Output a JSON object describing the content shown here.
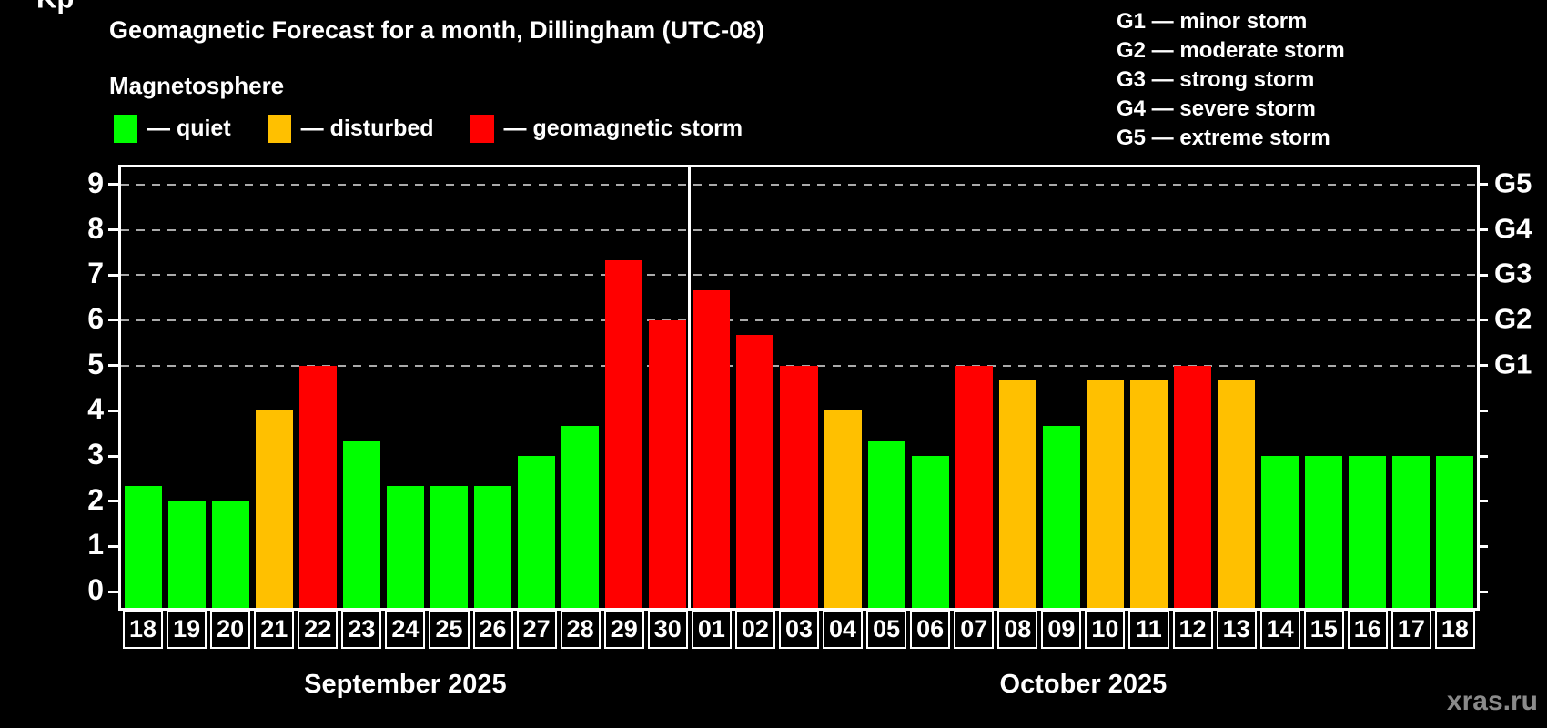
{
  "title": "Geomagnetic Forecast for a month, Dillingham (UTC-08)",
  "subtitle": "Magnetosphere",
  "legend": {
    "items": [
      {
        "level": "quiet",
        "label": "— quiet",
        "color": "#00ff00"
      },
      {
        "level": "disturbed",
        "label": "— disturbed",
        "color": "#ffc000"
      },
      {
        "level": "storm",
        "label": "— geomagnetic storm",
        "color": "#ff0000"
      }
    ]
  },
  "g_legend": {
    "lines": [
      "G1 — minor storm",
      "G2 — moderate storm",
      "G3 — strong storm",
      "G4 — severe storm",
      "G5 — extreme storm"
    ]
  },
  "watermark": "xras.ru",
  "chart_data": {
    "type": "bar",
    "ylabel": "Kp",
    "ylim": [
      -0.36,
      9.38
    ],
    "y_ticks": [
      0,
      1,
      2,
      3,
      4,
      5,
      6,
      7,
      8,
      9
    ],
    "gridlines_kp": [
      5,
      6,
      7,
      8,
      9
    ],
    "grid_style": "dashed",
    "right_axis_labels": [
      {
        "kp": 5,
        "label": "G1"
      },
      {
        "kp": 6,
        "label": "G2"
      },
      {
        "kp": 7,
        "label": "G3"
      },
      {
        "kp": 8,
        "label": "G4"
      },
      {
        "kp": 9,
        "label": "G5"
      }
    ],
    "groups": [
      {
        "label": "September 2025",
        "bars": [
          {
            "day": "18",
            "kp": 2.33,
            "level": "quiet"
          },
          {
            "day": "19",
            "kp": 2.0,
            "level": "quiet"
          },
          {
            "day": "20",
            "kp": 2.0,
            "level": "quiet"
          },
          {
            "day": "21",
            "kp": 4.0,
            "level": "disturbed"
          },
          {
            "day": "22",
            "kp": 5.0,
            "level": "storm"
          },
          {
            "day": "23",
            "kp": 3.33,
            "level": "quiet"
          },
          {
            "day": "24",
            "kp": 2.33,
            "level": "quiet"
          },
          {
            "day": "25",
            "kp": 2.33,
            "level": "quiet"
          },
          {
            "day": "26",
            "kp": 2.33,
            "level": "quiet"
          },
          {
            "day": "27",
            "kp": 3.0,
            "level": "quiet"
          },
          {
            "day": "28",
            "kp": 3.67,
            "level": "quiet"
          },
          {
            "day": "29",
            "kp": 7.33,
            "level": "storm"
          },
          {
            "day": "30",
            "kp": 6.0,
            "level": "storm"
          }
        ]
      },
      {
        "label": "October 2025",
        "bars": [
          {
            "day": "01",
            "kp": 6.67,
            "level": "storm"
          },
          {
            "day": "02",
            "kp": 5.67,
            "level": "storm"
          },
          {
            "day": "03",
            "kp": 5.0,
            "level": "storm"
          },
          {
            "day": "04",
            "kp": 4.0,
            "level": "disturbed"
          },
          {
            "day": "05",
            "kp": 3.33,
            "level": "quiet"
          },
          {
            "day": "06",
            "kp": 3.0,
            "level": "quiet"
          },
          {
            "day": "07",
            "kp": 5.0,
            "level": "storm"
          },
          {
            "day": "08",
            "kp": 4.67,
            "level": "disturbed"
          },
          {
            "day": "09",
            "kp": 3.67,
            "level": "quiet"
          },
          {
            "day": "10",
            "kp": 4.67,
            "level": "disturbed"
          },
          {
            "day": "11",
            "kp": 4.67,
            "level": "disturbed"
          },
          {
            "day": "12",
            "kp": 5.0,
            "level": "storm"
          },
          {
            "day": "13",
            "kp": 4.67,
            "level": "disturbed"
          },
          {
            "day": "14",
            "kp": 3.0,
            "level": "quiet"
          },
          {
            "day": "15",
            "kp": 3.0,
            "level": "quiet"
          },
          {
            "day": "16",
            "kp": 3.0,
            "level": "quiet"
          },
          {
            "day": "17",
            "kp": 3.0,
            "level": "quiet"
          },
          {
            "day": "18",
            "kp": 3.0,
            "level": "quiet"
          }
        ]
      }
    ]
  }
}
